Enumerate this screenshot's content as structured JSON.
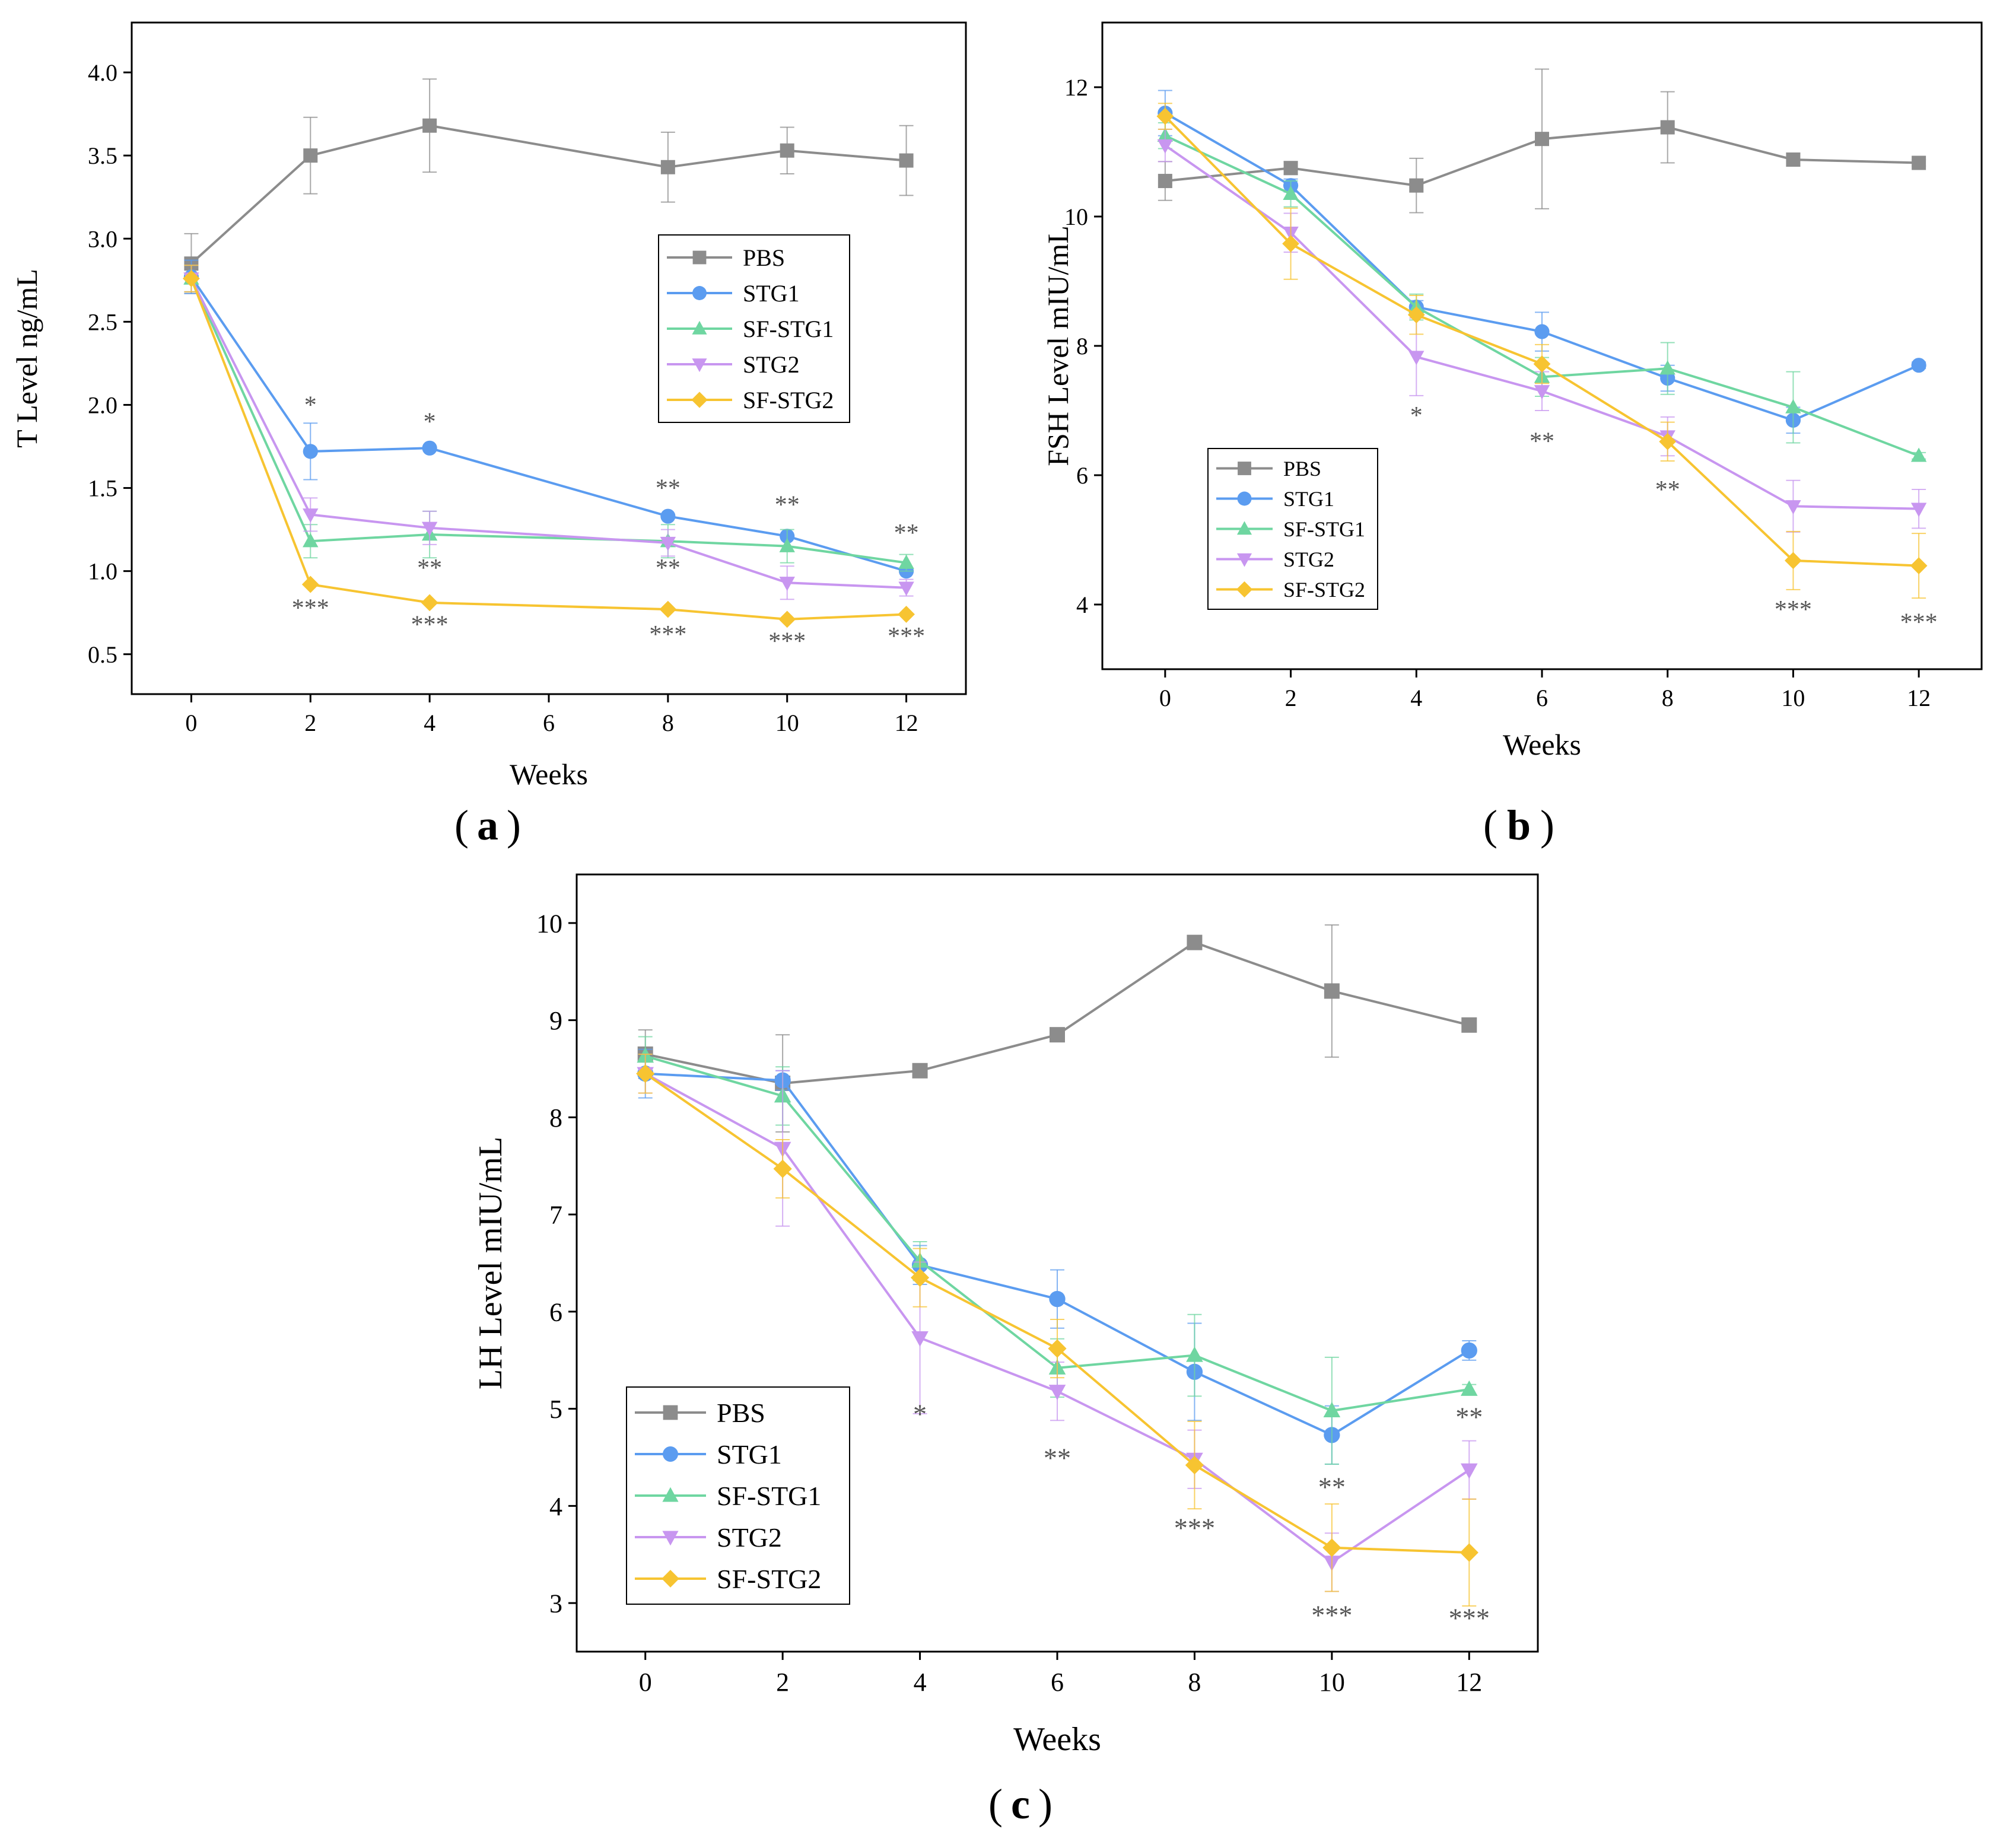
{
  "colors": {
    "PBS": "#8c8c8c",
    "STG1": "#5b9cf0",
    "SF-STG1": "#6fd6a1",
    "STG2": "#c896f0",
    "SF-STG2": "#f7c431",
    "axis": "#000000",
    "annotation": "#555555"
  },
  "chart_data": [
    {
      "id": "a",
      "type": "line",
      "panel_label": "a",
      "xlabel": "Weeks",
      "ylabel": "T Level ng/mL",
      "xlim": [
        -1,
        13
      ],
      "ylim": [
        0.26,
        4.3
      ],
      "xticks": [
        0,
        2,
        4,
        6,
        8,
        10,
        12
      ],
      "yticks": [
        0.5,
        1.0,
        1.5,
        2.0,
        2.5,
        3.0,
        3.5,
        4.0
      ],
      "ytick_labels": [
        "0.5",
        "1.0",
        "1.5",
        "2.0",
        "2.5",
        "3.0",
        "3.5",
        "4.0"
      ],
      "legend_position": "center-right",
      "series": [
        {
          "name": "PBS",
          "marker": "square",
          "x": [
            0,
            2,
            4,
            8,
            10,
            12
          ],
          "y": [
            2.85,
            3.5,
            3.68,
            3.43,
            3.53,
            3.47
          ],
          "err": [
            0.18,
            0.23,
            0.28,
            0.21,
            0.14,
            0.21
          ]
        },
        {
          "name": "STG1",
          "marker": "circle",
          "x": [
            0,
            2,
            4,
            8,
            10,
            12
          ],
          "y": [
            2.77,
            1.72,
            1.74,
            1.33,
            1.21,
            1.0
          ],
          "err": [
            0.1,
            0.17,
            0.0,
            0.0,
            0.0,
            0.0
          ]
        },
        {
          "name": "SF-STG1",
          "marker": "triangle-up",
          "x": [
            0,
            2,
            4,
            8,
            10,
            12
          ],
          "y": [
            2.76,
            1.18,
            1.22,
            1.18,
            1.15,
            1.05
          ],
          "err": [
            0.08,
            0.1,
            0.14,
            0.1,
            0.1,
            0.05
          ]
        },
        {
          "name": "STG2",
          "marker": "triangle-down",
          "x": [
            0,
            2,
            4,
            8,
            10,
            12
          ],
          "y": [
            2.76,
            1.34,
            1.26,
            1.17,
            0.93,
            0.9
          ],
          "err": [
            0.08,
            0.1,
            0.1,
            0.08,
            0.1,
            0.05
          ]
        },
        {
          "name": "SF-STG2",
          "marker": "diamond",
          "x": [
            0,
            2,
            4,
            8,
            10,
            12
          ],
          "y": [
            2.76,
            0.92,
            0.81,
            0.77,
            0.71,
            0.74
          ],
          "err": [
            0.08,
            0.0,
            0.0,
            0.0,
            0.0,
            0.0
          ]
        }
      ],
      "annotations": [
        {
          "text": "*",
          "x": 2,
          "y": 1.95
        },
        {
          "text": "***",
          "x": 2,
          "y": 0.73
        },
        {
          "text": "*",
          "x": 4,
          "y": 1.85
        },
        {
          "text": "**",
          "x": 4,
          "y": 0.97
        },
        {
          "text": "***",
          "x": 4,
          "y": 0.63
        },
        {
          "text": "**",
          "x": 8,
          "y": 1.45
        },
        {
          "text": "**",
          "x": 8,
          "y": 0.97
        },
        {
          "text": "***",
          "x": 8,
          "y": 0.57
        },
        {
          "text": "**",
          "x": 10,
          "y": 1.35
        },
        {
          "text": "***",
          "x": 10,
          "y": 0.53
        },
        {
          "text": "**",
          "x": 12,
          "y": 1.18
        },
        {
          "text": "***",
          "x": 12,
          "y": 0.56
        }
      ]
    },
    {
      "id": "b",
      "type": "line",
      "panel_label": "b",
      "xlabel": "Weeks",
      "ylabel": "FSH Level mIU/mL",
      "xlim": [
        -1,
        13
      ],
      "ylim": [
        3.0,
        13.0
      ],
      "xticks": [
        0,
        2,
        4,
        6,
        8,
        10,
        12
      ],
      "yticks": [
        4,
        6,
        8,
        10,
        12
      ],
      "ytick_labels": [
        "4",
        "6",
        "8",
        "10",
        "12"
      ],
      "legend_position": "bottom-left",
      "series": [
        {
          "name": "PBS",
          "marker": "square",
          "x": [
            0,
            2,
            4,
            6,
            8,
            10,
            12
          ],
          "y": [
            10.55,
            10.75,
            10.48,
            11.2,
            11.38,
            10.88,
            10.83
          ],
          "err": [
            0.3,
            0.1,
            0.42,
            1.08,
            0.55,
            0.1,
            0.05
          ]
        },
        {
          "name": "STG1",
          "marker": "circle",
          "x": [
            0,
            2,
            4,
            6,
            8,
            10,
            12
          ],
          "y": [
            11.6,
            10.48,
            8.6,
            8.22,
            7.5,
            6.85,
            7.7
          ],
          "err": [
            0.35,
            0.1,
            0.1,
            0.3,
            0.2,
            0.2,
            0.05
          ]
        },
        {
          "name": "SF-STG1",
          "marker": "triangle-up",
          "x": [
            0,
            2,
            4,
            6,
            8,
            10,
            12
          ],
          "y": [
            11.25,
            10.35,
            8.6,
            7.52,
            7.65,
            7.05,
            6.3
          ],
          "err": [
            0.2,
            0.2,
            0.2,
            0.3,
            0.4,
            0.55,
            0.05
          ]
        },
        {
          "name": "STG2",
          "marker": "triangle-down",
          "x": [
            0,
            2,
            4,
            6,
            8,
            10,
            12
          ],
          "y": [
            11.1,
            9.75,
            7.83,
            7.3,
            6.6,
            5.52,
            5.48
          ],
          "err": [
            0.25,
            0.3,
            0.6,
            0.3,
            0.3,
            0.4,
            0.3
          ]
        },
        {
          "name": "SF-STG2",
          "marker": "diamond",
          "x": [
            0,
            2,
            4,
            6,
            8,
            10,
            12
          ],
          "y": [
            11.55,
            9.58,
            8.48,
            7.72,
            6.52,
            4.68,
            4.6
          ],
          "err": [
            0.2,
            0.55,
            0.3,
            0.3,
            0.3,
            0.45,
            0.5
          ]
        }
      ],
      "annotations": [
        {
          "text": "*",
          "x": 4,
          "y": 6.8
        },
        {
          "text": "**",
          "x": 6,
          "y": 6.4
        },
        {
          "text": "**",
          "x": 8,
          "y": 5.65
        },
        {
          "text": "***",
          "x": 10,
          "y": 3.8
        },
        {
          "text": "***",
          "x": 12,
          "y": 3.6
        }
      ]
    },
    {
      "id": "c",
      "type": "line",
      "panel_label": "c",
      "xlabel": "Weeks",
      "ylabel": "LH Level mIU/mL",
      "xlim": [
        -1,
        13
      ],
      "ylim": [
        2.5,
        10.5
      ],
      "xticks": [
        0,
        2,
        4,
        6,
        8,
        10,
        12
      ],
      "yticks": [
        3,
        4,
        5,
        6,
        7,
        8,
        9,
        10
      ],
      "ytick_labels": [
        "3",
        "4",
        "5",
        "6",
        "7",
        "8",
        "9",
        "10"
      ],
      "legend_position": "bottom-left",
      "series": [
        {
          "name": "PBS",
          "marker": "square",
          "x": [
            0,
            2,
            4,
            6,
            8,
            10,
            12
          ],
          "y": [
            8.65,
            8.35,
            8.48,
            8.85,
            9.8,
            9.3,
            8.95
          ],
          "err": [
            0.25,
            0.5,
            0.0,
            0.0,
            0.0,
            0.68,
            0.05
          ]
        },
        {
          "name": "STG1",
          "marker": "circle",
          "x": [
            0,
            2,
            4,
            6,
            8,
            10,
            12
          ],
          "y": [
            8.45,
            8.38,
            6.48,
            6.13,
            5.38,
            4.73,
            5.6
          ],
          "err": [
            0.25,
            0.1,
            0.2,
            0.3,
            0.5,
            0.3,
            0.1
          ]
        },
        {
          "name": "SF-STG1",
          "marker": "triangle-up",
          "x": [
            0,
            2,
            4,
            6,
            8,
            10,
            12
          ],
          "y": [
            8.63,
            8.22,
            6.52,
            5.42,
            5.55,
            4.98,
            5.2
          ],
          "err": [
            0.2,
            0.3,
            0.2,
            0.3,
            0.42,
            0.55,
            0.05
          ]
        },
        {
          "name": "STG2",
          "marker": "triangle-down",
          "x": [
            0,
            2,
            4,
            6,
            8,
            10,
            12
          ],
          "y": [
            8.45,
            7.68,
            5.73,
            5.18,
            4.48,
            3.42,
            4.37
          ],
          "err": [
            0.2,
            0.8,
            0.78,
            0.3,
            0.3,
            0.3,
            0.3
          ]
        },
        {
          "name": "SF-STG2",
          "marker": "diamond",
          "x": [
            0,
            2,
            4,
            6,
            8,
            10,
            12
          ],
          "y": [
            8.45,
            7.47,
            6.35,
            5.62,
            4.42,
            3.57,
            3.52
          ],
          "err": [
            0.2,
            0.3,
            0.3,
            0.3,
            0.45,
            0.45,
            0.55
          ]
        }
      ],
      "annotations": [
        {
          "text": "*",
          "x": 4,
          "y": 4.85
        },
        {
          "text": "**",
          "x": 6,
          "y": 4.4
        },
        {
          "text": "***",
          "x": 8,
          "y": 3.68
        },
        {
          "text": "**",
          "x": 10,
          "y": 4.1
        },
        {
          "text": "***",
          "x": 10,
          "y": 2.78
        },
        {
          "text": "**",
          "x": 12,
          "y": 4.82
        },
        {
          "text": "***",
          "x": 12,
          "y": 2.75
        }
      ]
    }
  ]
}
